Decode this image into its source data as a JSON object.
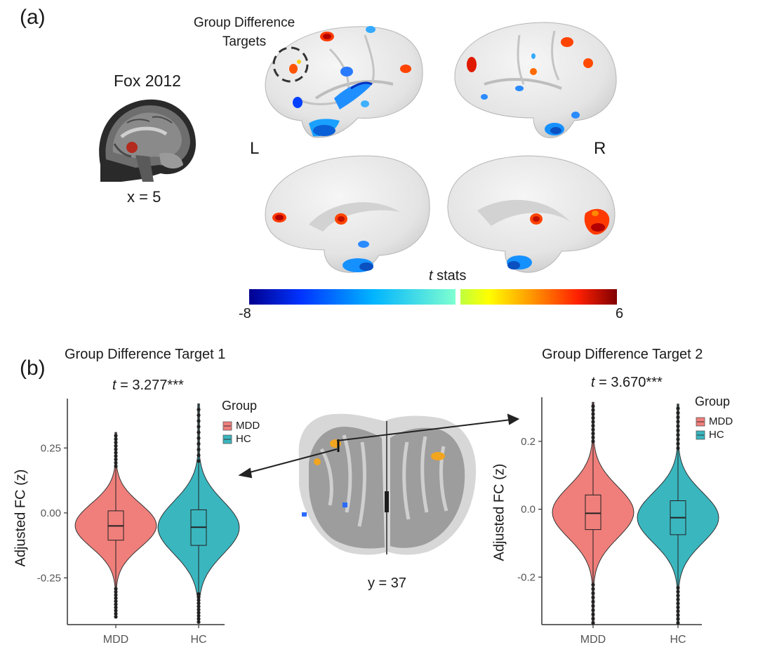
{
  "panel_a": {
    "label": "(a)",
    "seed_title": "Fox 2012",
    "seed_coord": "x = 5",
    "target_callout": [
      "Group Difference",
      "Targets"
    ],
    "hemi_left": "L",
    "hemi_right": "R",
    "colorbar_title_italic": "t",
    "colorbar_title_rest": " stats",
    "colorbar_min": "-8",
    "colorbar_max": "6"
  },
  "panel_b": {
    "label": "(b)",
    "slice_coord": "y = 37"
  },
  "colors": {
    "MDD": "#f07f7b",
    "HC": "#3ab6bf",
    "axis": "#333333"
  },
  "chart_data": [
    {
      "type": "violin",
      "title": "Group Difference Target 1",
      "stat_italic": "t",
      "stat_rest": " = 3.277***",
      "ylabel": "Adjusted FC (z)",
      "categories": [
        "MDD",
        "HC"
      ],
      "legend_title": "Group",
      "legend": [
        "MDD",
        "HC"
      ],
      "ylim": [
        -0.43,
        0.44
      ],
      "yticks": [
        0.25,
        0.0,
        -0.25
      ],
      "ytick_labels": [
        "0.25",
        "0.00",
        "-0.25"
      ],
      "grid": false,
      "series": [
        {
          "name": "MDD",
          "min": -0.4,
          "q1": -0.105,
          "median": -0.05,
          "q3": 0.008,
          "max": 0.31,
          "whisker_low": -0.28,
          "whisker_high": 0.18
        },
        {
          "name": "HC",
          "min": -0.42,
          "q1": -0.125,
          "median": -0.055,
          "q3": 0.012,
          "max": 0.42,
          "whisker_low": -0.3,
          "whisker_high": 0.2
        }
      ]
    },
    {
      "type": "violin",
      "title": "Group Difference Target 2",
      "stat_italic": "t",
      "stat_rest": " = 3.670***",
      "ylabel": "Adjusted FC (z)",
      "categories": [
        "MDD",
        "HC"
      ],
      "legend_title": "Group",
      "legend": [
        "MDD",
        "HC"
      ],
      "ylim": [
        -0.34,
        0.33
      ],
      "yticks": [
        0.2,
        0.0,
        -0.2
      ],
      "ytick_labels": [
        "0.2",
        "0.0",
        "-0.2"
      ],
      "grid": false,
      "series": [
        {
          "name": "MDD",
          "min": -0.335,
          "q1": -0.06,
          "median": -0.012,
          "q3": 0.042,
          "max": 0.315,
          "whisker_low": -0.21,
          "whisker_high": 0.2
        },
        {
          "name": "HC",
          "min": -0.335,
          "q1": -0.075,
          "median": -0.025,
          "q3": 0.025,
          "max": 0.31,
          "whisker_low": -0.22,
          "whisker_high": 0.18
        }
      ]
    }
  ]
}
